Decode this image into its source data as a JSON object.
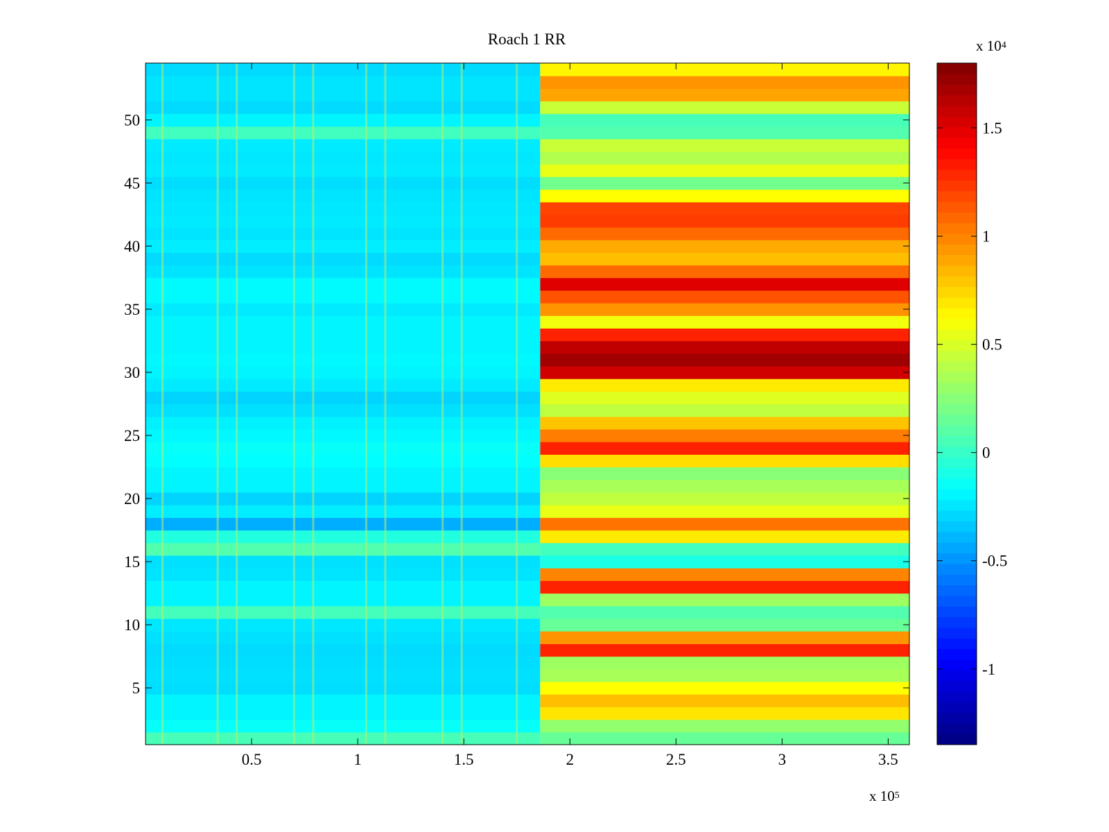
{
  "chart_data": {
    "type": "heatmap",
    "title": "Roach 1 RR",
    "xlabel": "",
    "ylabel": "",
    "x_exponent_label": {
      "base": "x 10",
      "exp": "5"
    },
    "colorbar_exponent_label": {
      "base": "x 10",
      "exp": "4"
    },
    "xlim": [
      0,
      360000
    ],
    "ylim": [
      0.5,
      54.5
    ],
    "x_ticks": [
      50000,
      100000,
      150000,
      200000,
      250000,
      300000,
      350000
    ],
    "x_tick_labels": [
      "0.5",
      "1",
      "1.5",
      "2",
      "2.5",
      "3",
      "3.5"
    ],
    "y_ticks": [
      5,
      10,
      15,
      20,
      25,
      30,
      35,
      40,
      45,
      50
    ],
    "y_tick_labels": [
      "5",
      "10",
      "15",
      "20",
      "25",
      "30",
      "35",
      "40",
      "45",
      "50"
    ],
    "colormap": "jet",
    "clim": [
      -13500,
      18000
    ],
    "colorbar_ticks": [
      -10000,
      -5000,
      0,
      5000,
      10000,
      15000
    ],
    "colorbar_tick_labels": [
      "-1",
      "-0.5",
      "0",
      "0.5",
      "1",
      "1.5"
    ],
    "colorbar_location": "right",
    "transition_x": 186000,
    "rows": [
      1,
      2,
      3,
      4,
      5,
      6,
      7,
      8,
      9,
      10,
      11,
      12,
      13,
      14,
      15,
      16,
      17,
      18,
      19,
      20,
      21,
      22,
      23,
      24,
      25,
      26,
      27,
      28,
      29,
      30,
      31,
      32,
      33,
      34,
      35,
      36,
      37,
      38,
      39,
      40,
      41,
      42,
      43,
      44,
      45,
      46,
      47,
      48,
      49,
      50,
      51,
      52,
      53,
      54
    ],
    "values_before": [
      500,
      -1500,
      -2000,
      -2000,
      -2700,
      -2600,
      -2700,
      -2800,
      -2600,
      -2400,
      400,
      -2000,
      -2000,
      -2500,
      -2600,
      800,
      -700,
      -4200,
      -2200,
      -3000,
      -2000,
      -2000,
      -1700,
      -1500,
      -1900,
      -2100,
      -2600,
      -3000,
      -2300,
      -2000,
      -1900,
      -2000,
      -2000,
      -2000,
      -2300,
      -1800,
      -1800,
      -2500,
      -2800,
      -2200,
      -2500,
      -2300,
      -2400,
      -2500,
      -2700,
      -2300,
      -2400,
      -2300,
      300,
      -2000,
      -2800,
      -2500,
      -2500,
      -2800
    ],
    "values_after": [
      1500,
      2800,
      7000,
      8200,
      6200,
      3500,
      3200,
      13000,
      9500,
      1500,
      800,
      3200,
      13000,
      10000,
      -900,
      300,
      6800,
      10500,
      5500,
      4200,
      3500,
      2500,
      7200,
      13000,
      10200,
      8000,
      4200,
      5200,
      6800,
      15500,
      17000,
      16000,
      13000,
      5800,
      9500,
      11500,
      15000,
      10800,
      8200,
      8800,
      10800,
      12200,
      12000,
      6200,
      1800,
      5500,
      3800,
      4500,
      800,
      500,
      4500,
      9000,
      9500,
      6500
    ],
    "bright_columns_x": [
      8000,
      34000,
      43000,
      70000,
      79000,
      104000,
      113000,
      140000,
      149000,
      175000
    ]
  }
}
